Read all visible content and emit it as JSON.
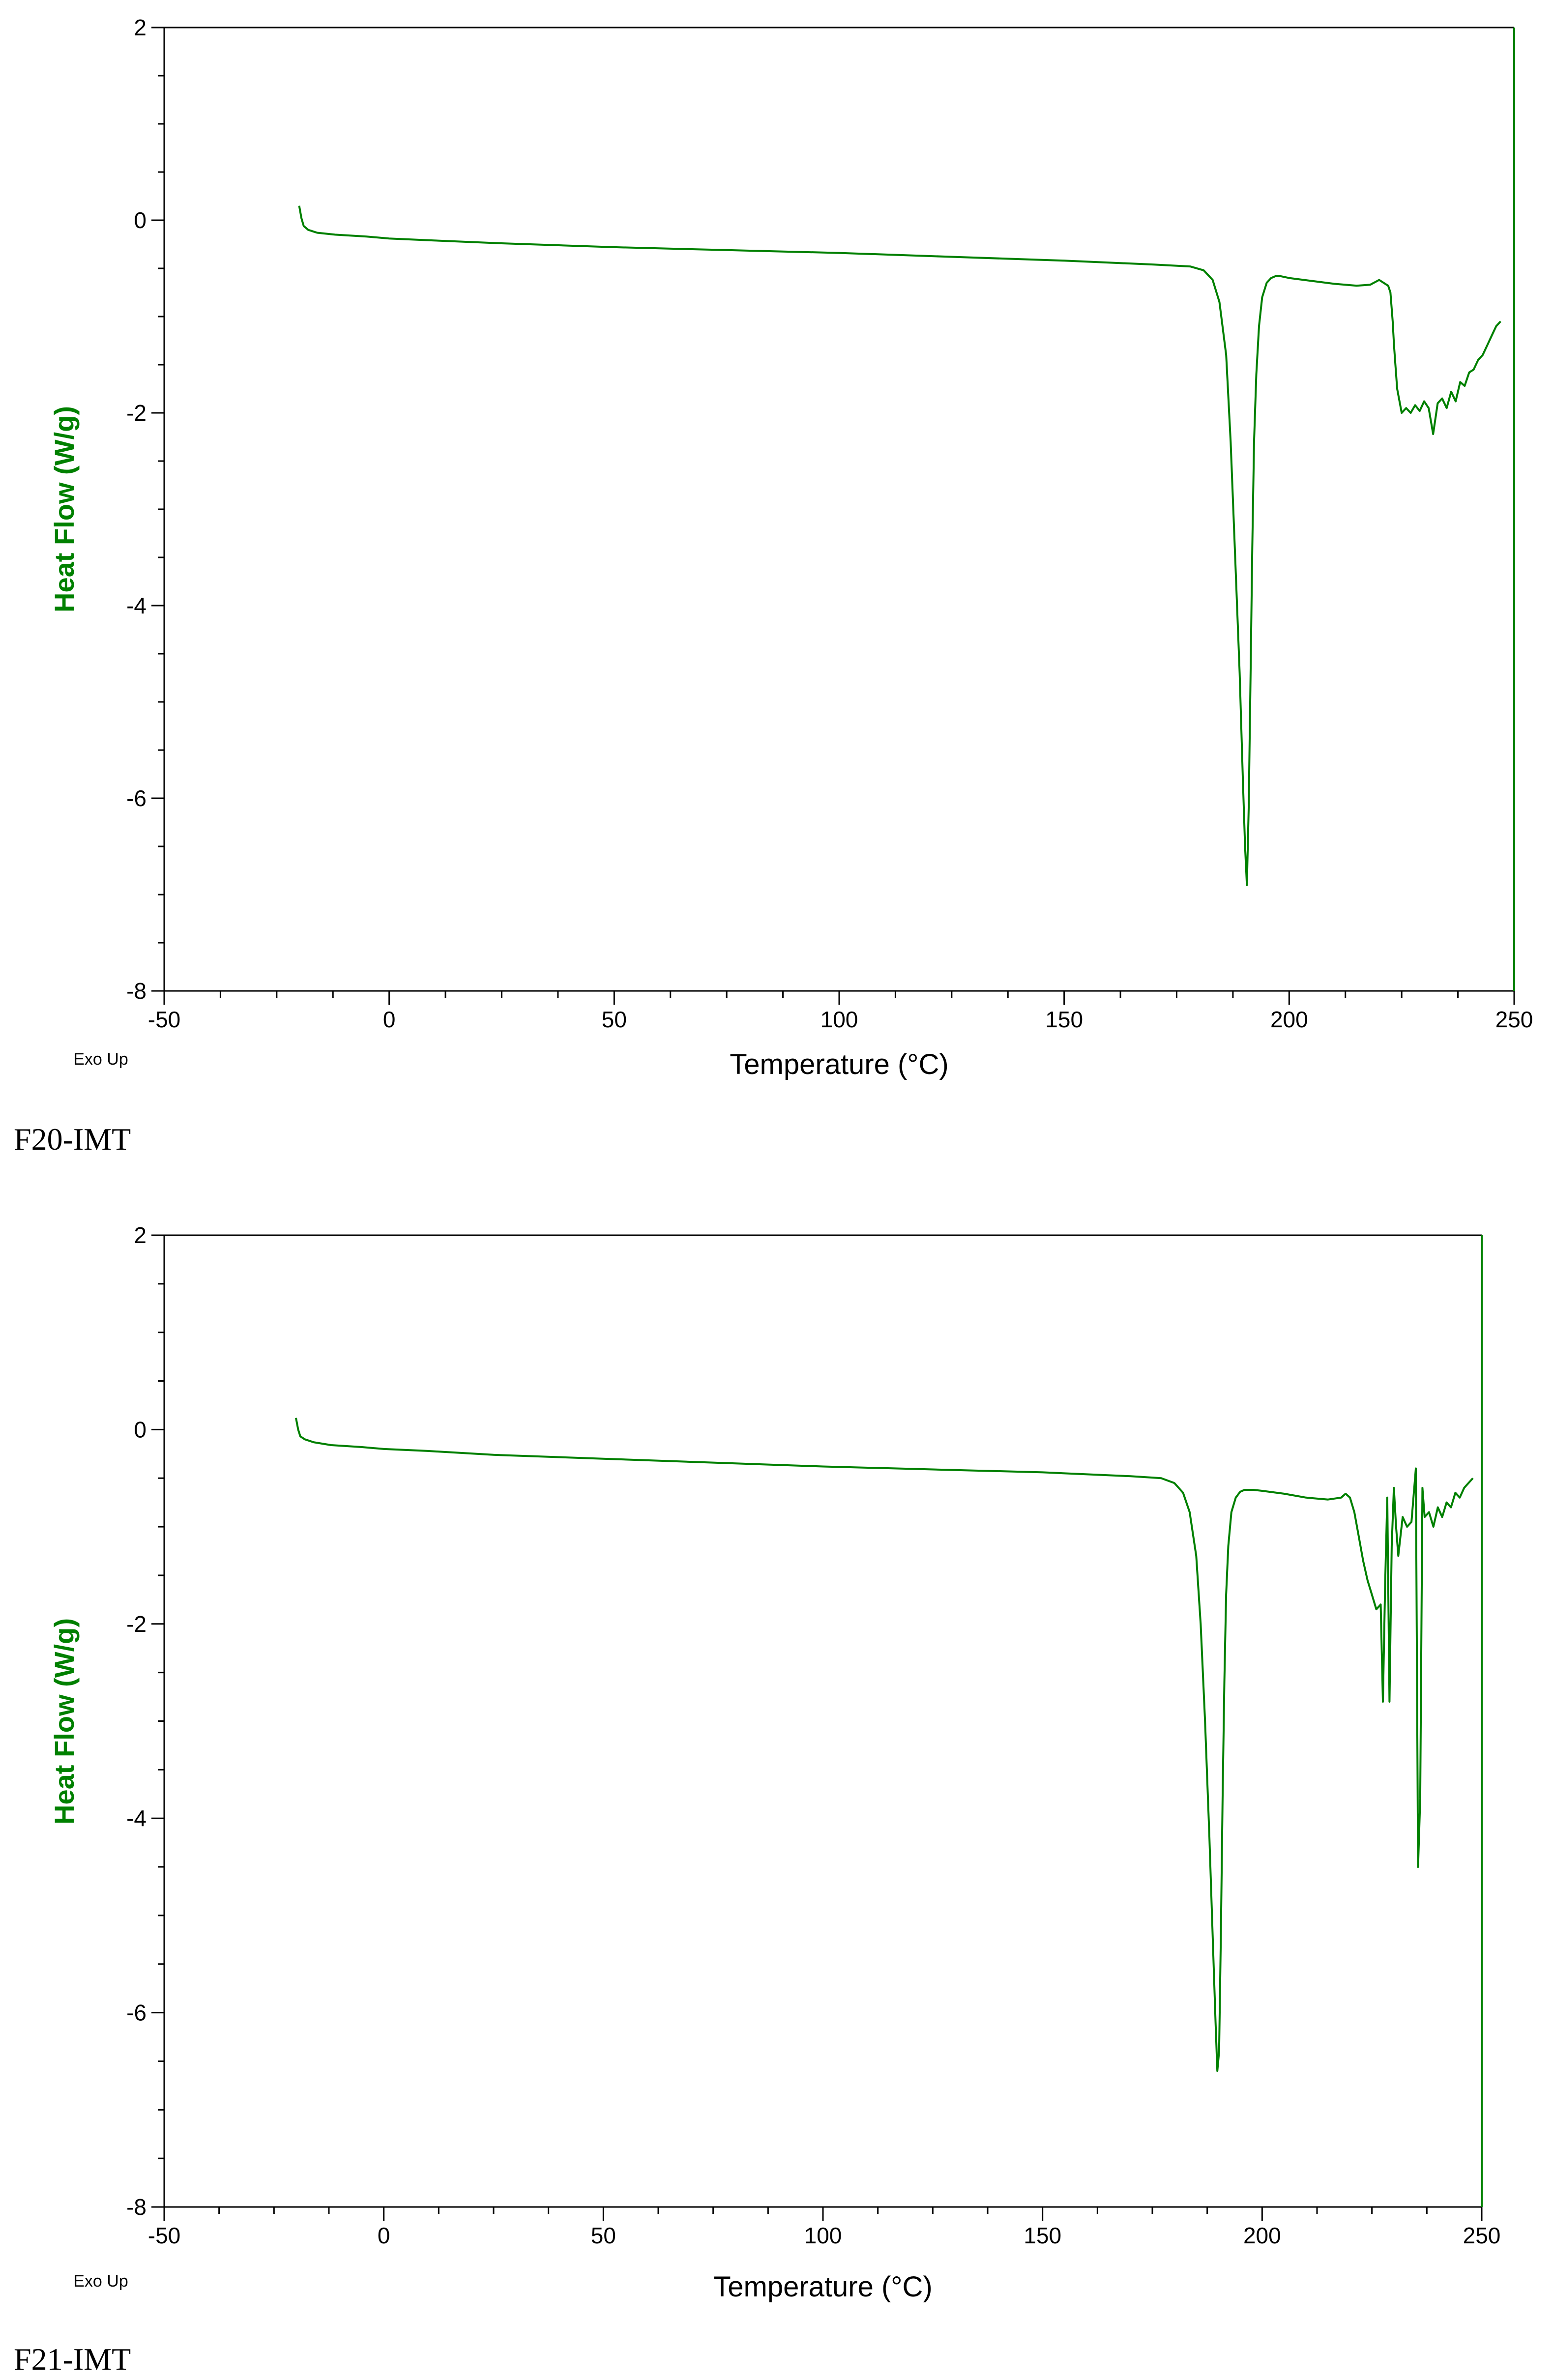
{
  "chart_data": [
    {
      "type": "line",
      "xlabel": "Temperature (°C)",
      "ylabel": "Heat Flow (W/g)",
      "corner_note": "Exo Up",
      "caption": "F20-IMT",
      "xlim": [
        -50,
        250
      ],
      "ylim": [
        -8,
        2
      ],
      "xticks": [
        "-50",
        "0",
        "50",
        "100",
        "150",
        "200",
        "250"
      ],
      "yticks": [
        "2",
        "0",
        "-2",
        "-4",
        "-6",
        "-8"
      ],
      "grid": false,
      "line_color": "#008000",
      "axis_label_color": "#008000",
      "series": [
        {
          "x": [
            -20,
            -19.5,
            -19,
            -18,
            -16,
            -12,
            -5,
            0,
            10,
            25,
            50,
            75,
            100,
            125,
            150,
            170,
            178,
            181,
            183,
            184.5,
            186,
            187,
            188,
            189,
            189.7,
            190.2,
            190.6,
            191,
            191.4,
            191.8,
            192.2,
            192.7,
            193.3,
            194,
            195,
            196,
            197,
            198,
            200,
            205,
            210,
            215,
            218,
            220,
            221,
            222,
            222.5,
            223,
            223.3,
            223.6,
            224,
            225,
            226,
            227,
            228,
            229,
            230,
            231,
            232,
            233,
            234,
            235,
            236,
            237,
            238,
            239,
            240,
            241,
            242,
            243,
            244,
            245,
            246,
            247
          ],
          "y": [
            0.15,
            0.02,
            -0.06,
            -0.1,
            -0.13,
            -0.15,
            -0.17,
            -0.19,
            -0.21,
            -0.24,
            -0.28,
            -0.31,
            -0.34,
            -0.38,
            -0.42,
            -0.46,
            -0.48,
            -0.52,
            -0.62,
            -0.85,
            -1.4,
            -2.3,
            -3.5,
            -4.7,
            -5.8,
            -6.5,
            -6.9,
            -6.1,
            -4.8,
            -3.4,
            -2.3,
            -1.6,
            -1.1,
            -0.8,
            -0.65,
            -0.6,
            -0.58,
            -0.58,
            -0.6,
            -0.63,
            -0.66,
            -0.68,
            -0.67,
            -0.62,
            -0.65,
            -0.68,
            -0.75,
            -1.05,
            -1.3,
            -1.5,
            -1.75,
            -2.0,
            -1.95,
            -2.0,
            -1.92,
            -1.98,
            -1.88,
            -1.95,
            -2.22,
            -1.9,
            -1.85,
            -1.95,
            -1.78,
            -1.88,
            -1.68,
            -1.72,
            -1.58,
            -1.55,
            -1.45,
            -1.4,
            -1.3,
            -1.2,
            -1.1,
            -1.05
          ]
        }
      ]
    },
    {
      "type": "line",
      "xlabel": "Temperature (°C)",
      "ylabel": "Heat Flow (W/g)",
      "corner_note": "Exo Up",
      "caption": "F21-IMT",
      "xlim": [
        -50,
        250
      ],
      "ylim": [
        -8,
        2
      ],
      "xticks": [
        "-50",
        "0",
        "50",
        "100",
        "150",
        "200",
        "250"
      ],
      "yticks": [
        "2",
        "0",
        "-2",
        "-4",
        "-6",
        "-8"
      ],
      "grid": false,
      "line_color": "#008000",
      "axis_label_color": "#008000",
      "series": [
        {
          "x": [
            -20,
            -19.5,
            -19,
            -18,
            -16,
            -12,
            -5,
            0,
            10,
            25,
            50,
            75,
            100,
            125,
            150,
            170,
            177,
            180,
            182,
            183.5,
            185,
            186,
            187,
            188,
            188.8,
            189.4,
            189.8,
            190.2,
            190.6,
            191,
            191.4,
            191.8,
            192.3,
            193,
            194,
            195,
            196,
            198,
            200,
            205,
            210,
            215,
            218,
            219,
            220,
            221,
            222,
            223,
            224,
            225,
            226,
            227,
            227.5,
            228,
            228.5,
            229,
            229.5,
            230,
            230.5,
            231,
            231.5,
            232,
            233,
            234,
            235,
            235.5,
            236,
            236.5,
            237,
            238,
            239,
            240,
            241,
            242,
            243,
            244,
            245,
            246,
            247,
            248
          ],
          "y": [
            0.12,
            0.0,
            -0.07,
            -0.1,
            -0.13,
            -0.16,
            -0.18,
            -0.2,
            -0.22,
            -0.26,
            -0.3,
            -0.34,
            -0.38,
            -0.41,
            -0.44,
            -0.48,
            -0.5,
            -0.55,
            -0.65,
            -0.85,
            -1.3,
            -2.0,
            -3.0,
            -4.2,
            -5.3,
            -6.1,
            -6.6,
            -6.4,
            -5.2,
            -3.8,
            -2.6,
            -1.7,
            -1.2,
            -0.85,
            -0.7,
            -0.64,
            -0.62,
            -0.62,
            -0.63,
            -0.66,
            -0.7,
            -0.72,
            -0.7,
            -0.66,
            -0.7,
            -0.85,
            -1.1,
            -1.35,
            -1.55,
            -1.7,
            -1.85,
            -1.8,
            -2.8,
            -1.6,
            -0.7,
            -2.8,
            -1.2,
            -0.6,
            -1.0,
            -1.3,
            -1.1,
            -0.9,
            -1.0,
            -0.95,
            -0.4,
            -4.5,
            -3.8,
            -0.6,
            -0.9,
            -0.85,
            -1.0,
            -0.8,
            -0.9,
            -0.75,
            -0.8,
            -0.65,
            -0.7,
            -0.6,
            -0.55,
            -0.5
          ]
        }
      ]
    }
  ]
}
